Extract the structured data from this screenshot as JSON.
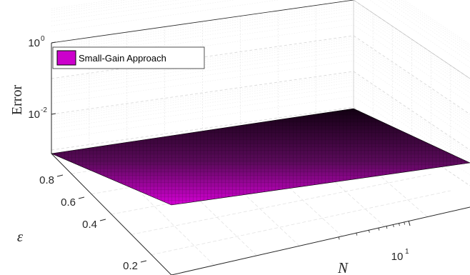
{
  "chart_data": {
    "type": "surface",
    "title": "",
    "zlabel": "Error",
    "xlabel": "N",
    "ylabel": "ε",
    "zscale": "log",
    "xscale": "log",
    "grid": true,
    "legend_position": "top-left",
    "z_ticks": [
      {
        "base": "10",
        "exp": "0"
      },
      {
        "base": "10",
        "exp": "-2"
      }
    ],
    "y_ticks": [
      "0.8",
      "0.6",
      "0.4",
      "0.2"
    ],
    "x_ticks": [
      {
        "base": "10",
        "exp": "1"
      }
    ],
    "series": [
      {
        "name": "Small-Gain Approach",
        "color": "#cc00cc",
        "surface_error": 0.001
      }
    ]
  }
}
